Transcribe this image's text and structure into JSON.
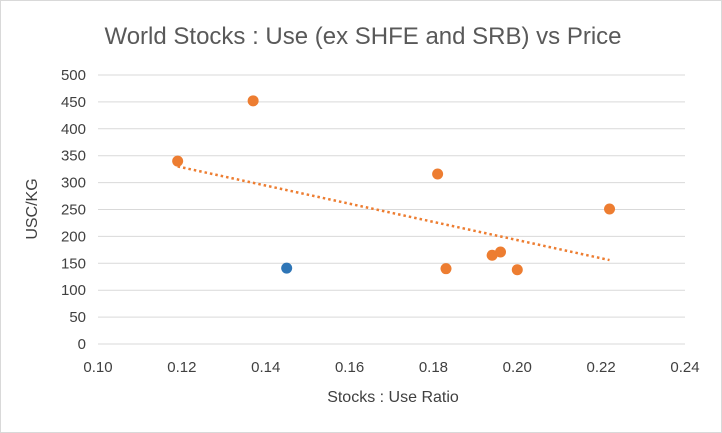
{
  "chart_data": {
    "type": "scatter",
    "title": "World Stocks : Use (ex SHFE and SRB) vs Price",
    "xlabel": "Stocks : Use Ratio",
    "ylabel": "USC/KG",
    "xlim": [
      0.1,
      0.24
    ],
    "ylim": [
      0,
      500
    ],
    "xticks": [
      "0.10",
      "0.12",
      "0.14",
      "0.16",
      "0.18",
      "0.20",
      "0.22",
      "0.24"
    ],
    "yticks": [
      "0",
      "50",
      "100",
      "150",
      "200",
      "250",
      "300",
      "350",
      "400",
      "450",
      "500"
    ],
    "grid": "horizontal",
    "legend": "none",
    "series": [
      {
        "color": "#ed7d31",
        "points": [
          {
            "x": 0.119,
            "y": 340
          },
          {
            "x": 0.137,
            "y": 452
          },
          {
            "x": 0.181,
            "y": 316
          },
          {
            "x": 0.183,
            "y": 140
          },
          {
            "x": 0.194,
            "y": 165
          },
          {
            "x": 0.196,
            "y": 171
          },
          {
            "x": 0.2,
            "y": 138
          },
          {
            "x": 0.222,
            "y": 251
          }
        ],
        "trendline": {
          "type": "linear",
          "style": "dotted",
          "x": [
            0.119,
            0.222
          ],
          "y": [
            330,
            156
          ]
        }
      },
      {
        "color": "#2e75b6",
        "points": [
          {
            "x": 0.145,
            "y": 141
          }
        ]
      }
    ]
  }
}
